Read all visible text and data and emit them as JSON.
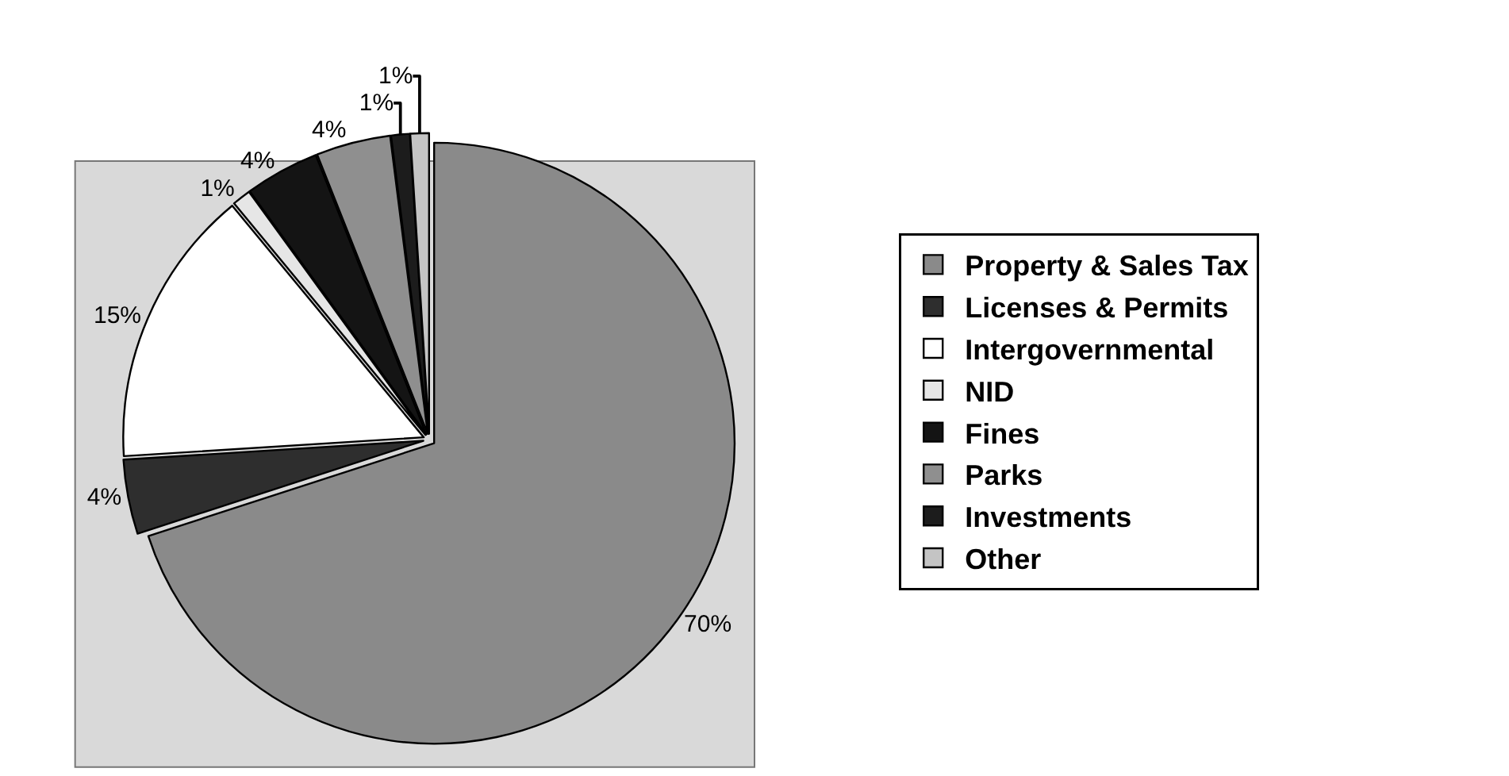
{
  "chart_data": {
    "type": "pie",
    "categories": [
      "Property & Sales Tax",
      "Licenses & Permits",
      "Intergovernmental",
      "NID",
      "Fines",
      "Parks",
      "Investments",
      "Other"
    ],
    "values": [
      70,
      4,
      15,
      1,
      4,
      4,
      1,
      1
    ],
    "colors": [
      "#8a8a8a",
      "#2e2e2e",
      "#ffffff",
      "#e6e6e6",
      "#141414",
      "#8f8f8f",
      "#1c1c1c",
      "#c4c4c4"
    ],
    "value_labels": [
      "70%",
      "4%",
      "15%",
      "1%",
      "4%",
      "4%",
      "1%",
      "1%"
    ],
    "legend": "right"
  }
}
